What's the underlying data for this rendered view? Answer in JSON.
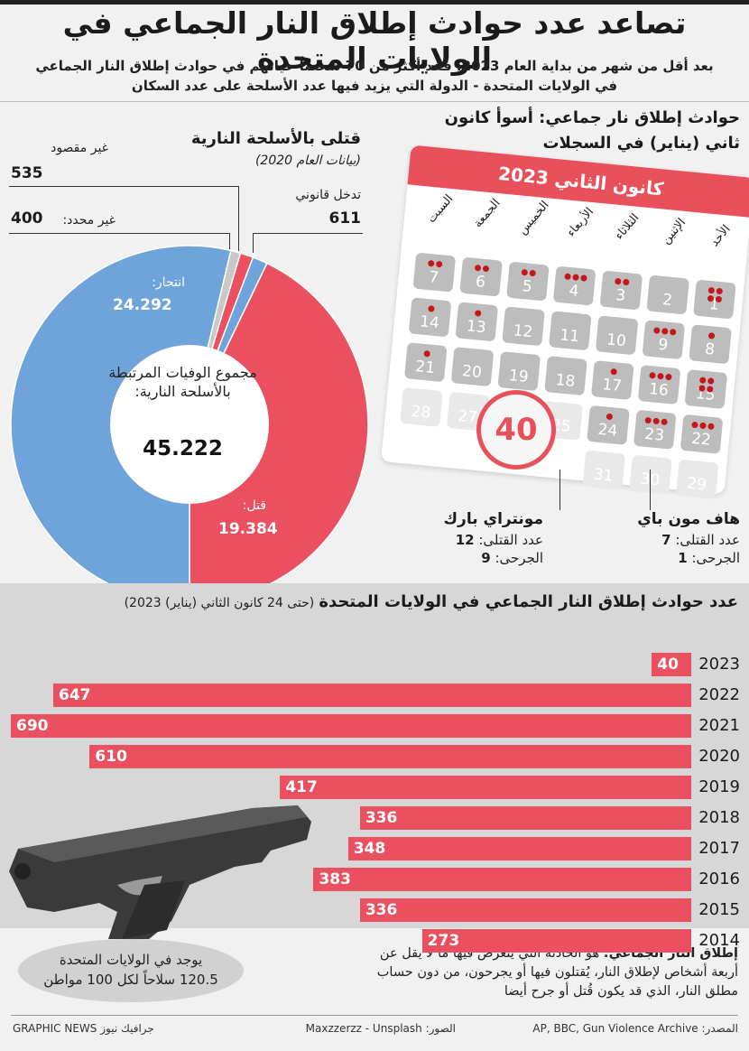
{
  "title": "تصاعد عدد حوادث إطلاق النار الجماعي في الولايات المتحدة",
  "subtitle_line1": "بعد أقل من شهر من بداية العام 2023، فقد أكثر من 70 شخصاً حياتهم في حوادث إطلاق النار الجماعي",
  "subtitle_line2": "في الولايات المتحدة - الدولة التي يزيد فيها عدد الأسلحة على عدد السكان",
  "donut": {
    "heading": "قتلى بالأسلحة النارية",
    "subheading": "(بيانات العام 2020)",
    "center_label": "مجموع الوفيات المرتبطة بالأسلحة النارية:",
    "center_value": "45.222",
    "labels": {
      "unintentional": "غير مقصود",
      "unintentional_value": "535",
      "undetermined": "غير محدد:",
      "undetermined_value": "400",
      "legal": "تدخل قانوني",
      "legal_value": "611",
      "suicide": "انتحار:",
      "suicide_value": "24.292",
      "homicide": "قتل:",
      "homicide_value": "19.384"
    },
    "colors": {
      "suicide": "#6fa4db",
      "homicide": "#ea5060",
      "unintentional": "#ea5060",
      "undetermined": "#c8c8c8",
      "legal": "#6fa4db"
    }
  },
  "calendar": {
    "heading_line1": "حوادث إطلاق نار جماعي: أسوأ كانون",
    "heading_line2": "ثاني (يناير) في السجلات",
    "month_title": "كانون الثاني 2023",
    "days": [
      "الأحد",
      "الإثنين",
      "الثلاثاء",
      "الأربعاء",
      "الخميس",
      "الجمعة",
      "السبت"
    ],
    "total": "40",
    "incident_left": {
      "name": "هاف مون باي",
      "killed_label": "عدد القتلى:",
      "killed": "7",
      "injured_label": "الجرحى:",
      "injured": "1"
    },
    "incident_right": {
      "name": "مونتراي بارك",
      "killed_label": "عدد القتلى:",
      "killed": "12",
      "injured_label": "الجرحى:",
      "injured": "9"
    }
  },
  "bars": {
    "heading": "عدد حوادث إطلاق النار الجماعي في الولايات المتحدة",
    "heading_note": "(حتى 24 كانون الثاني (يناير) 2023)"
  },
  "chart_data": {
    "type": "bar",
    "categories": [
      "2023",
      "2022",
      "2021",
      "2020",
      "2019",
      "2018",
      "2017",
      "2016",
      "2015",
      "2014"
    ],
    "values": [
      40,
      647,
      690,
      610,
      417,
      336,
      348,
      383,
      336,
      273
    ],
    "title": "عدد حوادث إطلاق النار الجماعي في الولايات المتحدة",
    "xlabel": "",
    "ylabel": "",
    "xlim": [
      0,
      690
    ]
  },
  "donut_data": {
    "type": "pie",
    "categories": [
      "انتحار",
      "قتل",
      "تدخل قانوني",
      "غير مقصود",
      "غير محدد"
    ],
    "values": [
      24292,
      19384,
      611,
      535,
      400
    ]
  },
  "gun_note_line1": "يوجد في الولايات المتحدة",
  "gun_note_line2": "120.5 سلاحاً لكل 100 مواطن",
  "definition_term": "إطلاق النار الجماعي:",
  "definition_text": " هو الحادثة التي يتعرض فيها ما لا يقل عن أربعة أشخاص لإطلاق النار، يُقتلون فيها أو يجرحون، من دون حساب مطلق النار، الذي قد يكون قُتل أو جرح أيضا",
  "footer": {
    "source": "المصدر: AP, BBC, Gun Violence Archive",
    "photo": "الصور: Maxzzerzz - Unsplash",
    "credit": "GRAPHIC NEWS جرافيك نيوز"
  }
}
